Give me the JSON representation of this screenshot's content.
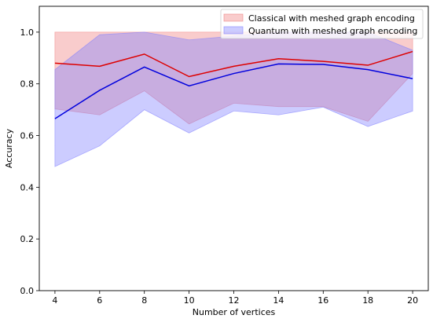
{
  "chart_data": {
    "type": "line",
    "x": [
      4,
      6,
      8,
      10,
      12,
      14,
      16,
      18,
      20
    ],
    "xlabel": "Number of vertices",
    "ylabel": "Accuracy",
    "xlim": [
      3.3,
      20.7
    ],
    "ylim": [
      0.0,
      1.1
    ],
    "xticks": [
      4,
      6,
      8,
      10,
      12,
      14,
      16,
      18,
      20
    ],
    "yticks": [
      0.0,
      0.2,
      0.4,
      0.6,
      0.8,
      1.0
    ],
    "xtick_labels": [
      "4",
      "6",
      "8",
      "10",
      "12",
      "14",
      "16",
      "18",
      "20"
    ],
    "ytick_labels": [
      "0.0",
      "0.2",
      "0.4",
      "0.6",
      "0.8",
      "1.0"
    ],
    "grid": false,
    "legend_position": "top-right",
    "series": [
      {
        "name": "Classical with meshed graph encoding",
        "line_color": "#dd0000",
        "band_color": "#f08080",
        "values": [
          0.88,
          0.868,
          0.915,
          0.828,
          0.868,
          0.897,
          0.887,
          0.872,
          0.925
        ],
        "lower": [
          0.703,
          0.68,
          0.773,
          0.645,
          0.725,
          0.712,
          0.712,
          0.655,
          0.84
        ],
        "upper": [
          1.0,
          1.0,
          1.0,
          1.0,
          1.0,
          1.0,
          1.0,
          1.0,
          1.0
        ]
      },
      {
        "name": "Quantum with meshed graph encoding",
        "line_color": "#0000dd",
        "band_color": "#8080ff",
        "values": [
          0.665,
          0.775,
          0.865,
          0.792,
          0.84,
          0.877,
          0.875,
          0.855,
          0.82
        ],
        "lower": [
          0.48,
          0.56,
          0.7,
          0.61,
          0.695,
          0.68,
          0.71,
          0.635,
          0.695
        ],
        "upper": [
          0.855,
          0.99,
          1.0,
          0.97,
          0.985,
          1.0,
          1.0,
          1.0,
          0.93
        ]
      }
    ]
  }
}
